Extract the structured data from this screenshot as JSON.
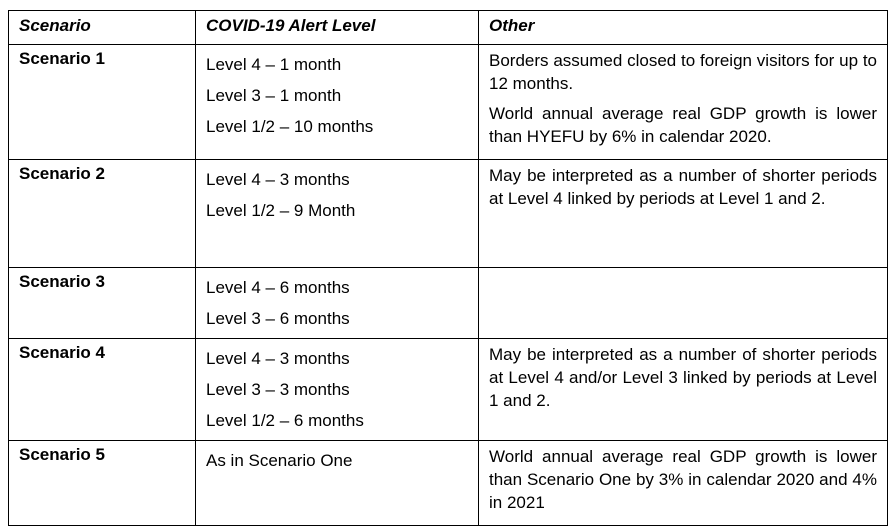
{
  "headers": {
    "scenario": "Scenario",
    "alert": "COVID-19 Alert Level",
    "other": "Other"
  },
  "rows": [
    {
      "scenario": "Scenario 1",
      "levels": [
        "Level 4 – 1 month",
        "Level 3 – 1 month",
        "Level 1/2 – 10 months"
      ],
      "other": [
        "Borders assumed closed to foreign visitors for up to 12 months.",
        "World annual average real GDP growth is lower than HYEFU by 6% in calendar 2020."
      ]
    },
    {
      "scenario": "Scenario 2",
      "levels": [
        "Level 4 – 3 months",
        "Level 1/2 – 9 Month"
      ],
      "other": [
        "May be interpreted as a number of shorter periods at Level 4 linked by periods at Level 1 and 2."
      ]
    },
    {
      "scenario": "Scenario 3",
      "levels": [
        "Level 4 – 6 months",
        "Level 3 – 6 months"
      ],
      "other": []
    },
    {
      "scenario": "Scenario 4",
      "levels": [
        "Level 4 – 3 months",
        "Level 3 – 3 months",
        "Level 1/2 – 6 months"
      ],
      "other": [
        "May be interpreted as a number of shorter periods at Level 4 and/or Level 3 linked by periods at Level 1 and 2."
      ]
    },
    {
      "scenario": "Scenario 5",
      "levels": [
        "As in Scenario One"
      ],
      "other": [
        "World annual average real GDP growth is lower than Scenario One by 3% in calendar 2020 and 4% in 2021"
      ]
    }
  ]
}
